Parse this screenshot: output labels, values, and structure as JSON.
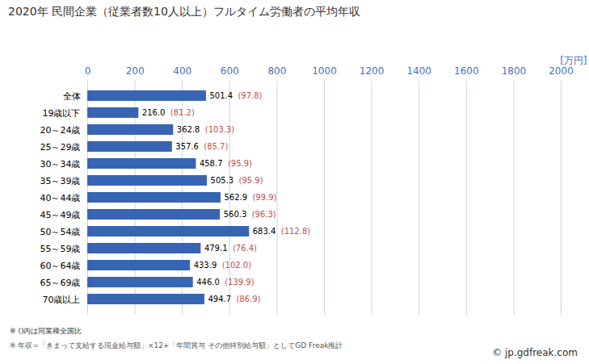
{
  "chart_data": {
    "type": "bar",
    "orientation": "horizontal",
    "title": "2020年 民間企業（従業者数10人以上）フルタイム労働者の平均年収",
    "xlabel": "[万円]",
    "categories": [
      "全体",
      "19歳以下",
      "20～24歳",
      "25～29歳",
      "30～34歳",
      "35～39歳",
      "40～44歳",
      "45～49歳",
      "50～54歳",
      "55～59歳",
      "60～64歳",
      "65～69歳",
      "70歳以上"
    ],
    "values": [
      501.4,
      216.0,
      362.8,
      357.6,
      458.7,
      505.3,
      562.9,
      560.3,
      683.4,
      479.1,
      433.9,
      446.0,
      494.7
    ],
    "value_labels": [
      "501.4",
      "216.0",
      "362.8",
      "357.6",
      "458.7",
      "505.3",
      "562.9",
      "560.3",
      "683.4",
      "479.1",
      "433.9",
      "446.0",
      "494.7"
    ],
    "ratios": [
      97.8,
      81.2,
      103.3,
      85.7,
      95.9,
      95.9,
      99.9,
      96.3,
      112.8,
      76.4,
      102.0,
      139.9,
      86.9
    ],
    "ratio_labels": [
      "(97.8)",
      "(81.2)",
      "(103.3)",
      "(85.7)",
      "(95.9)",
      "(95.9)",
      "(99.9)",
      "(96.3)",
      "(112.8)",
      "(76.4)",
      "(102.0)",
      "(139.9)",
      "(86.9)"
    ],
    "ratio_color": "#c0504d",
    "color": "#3864b4",
    "xlim": [
      0,
      2000
    ],
    "xticks": [
      0,
      200,
      400,
      600,
      800,
      1000,
      1200,
      1400,
      1600,
      1800,
      2000
    ],
    "grid": true,
    "data_labels": true,
    "notes": [
      "※ ()内は同業種全国比",
      "※ 年収=「きまって支給する現金給与額」×12+「年間賞与 その他特別給与額」としてGD Freak推計"
    ],
    "source": "© jp.gdfreak.com"
  }
}
